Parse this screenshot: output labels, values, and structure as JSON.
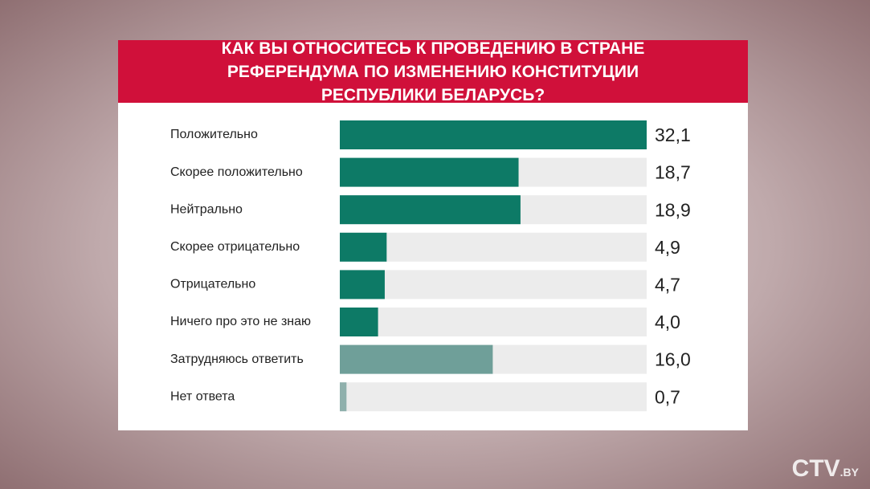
{
  "chart_data": {
    "type": "bar",
    "orientation": "horizontal",
    "title": "КАК ВЫ ОТНОСИТЕСЬ К ПРОВЕДЕНИЮ В СТРАНЕ РЕФЕРЕНДУМА ПО ИЗМЕНЕНИЮ КОНСТИТУЦИИ РЕСПУБЛИКИ БЕЛАРУСЬ?",
    "categories": [
      "Положительно",
      "Скорее положительно",
      "Нейтрально",
      "Скорее отрицательно",
      "Отрицательно",
      "Ничего про это не знаю",
      "Затрудняюсь ответить",
      "Нет ответа"
    ],
    "values": [
      32.1,
      18.7,
      18.9,
      4.9,
      4.7,
      4.0,
      16.0,
      0.7
    ],
    "value_labels": [
      "32,1",
      "18,7",
      "18,9",
      "4,9",
      "4,7",
      "4,0",
      "16,0",
      "0,7"
    ],
    "colors": [
      "#0d7a66",
      "#0d7a66",
      "#0d7a66",
      "#0d7a66",
      "#0d7a66",
      "#0d7a66",
      "#6f9f99",
      "#8fb0ac"
    ]
  },
  "logo": {
    "main": "CTV",
    "sub": ".BY"
  }
}
